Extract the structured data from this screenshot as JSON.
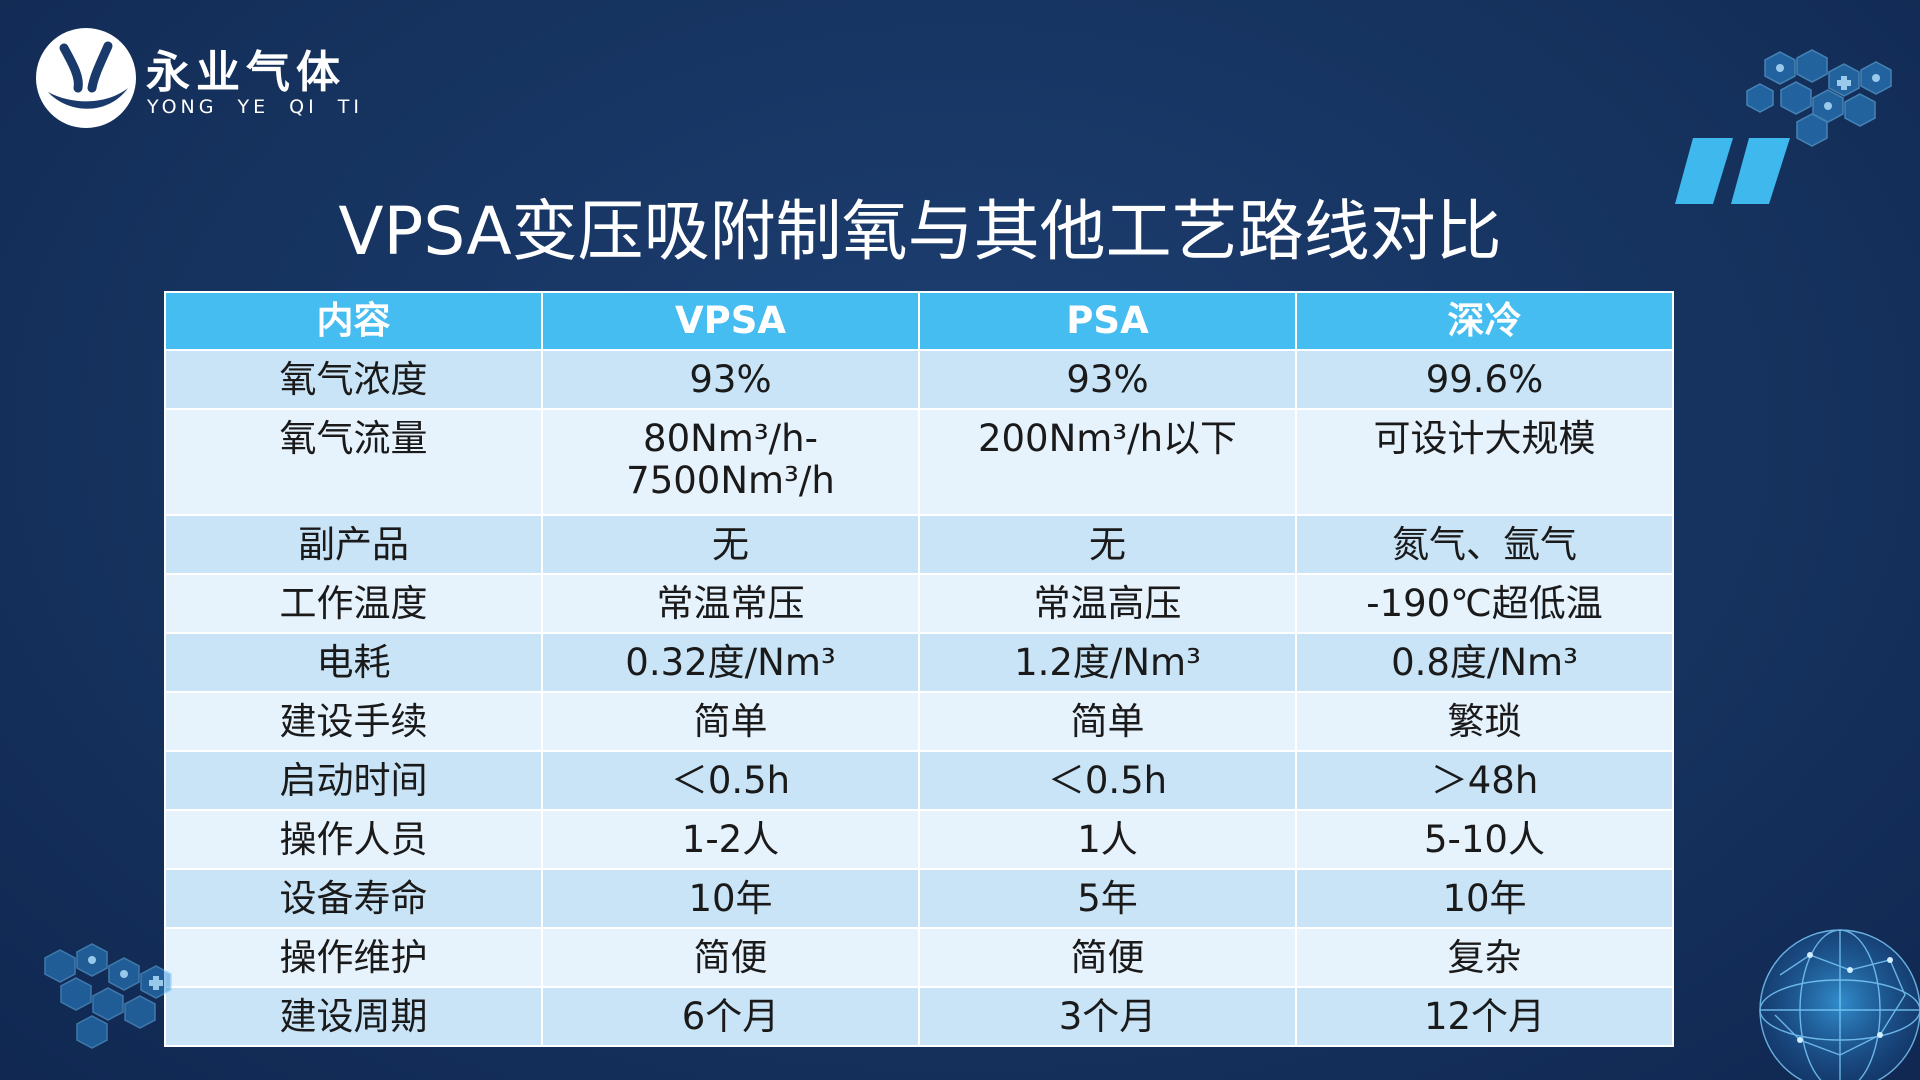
{
  "logo": {
    "name_cn": "永业气体",
    "name_en": "YONG YE QI TI"
  },
  "title": "VPSA变压吸附制氧与其他工艺路线对比",
  "colors": {
    "background": "#16335f",
    "header": "#46bdf0",
    "row_odd": "#c9e4f7",
    "row_even": "#e6f2fc",
    "accent": "#3fb8ee"
  },
  "table": {
    "headers": [
      "内容",
      "VPSA",
      "PSA",
      "深冷"
    ],
    "rows": [
      [
        "氧气浓度",
        "93%",
        "93%",
        "99.6%"
      ],
      [
        "氧气流量",
        "80Nm³/h-7500Nm³/h",
        "200Nm³/h以下",
        "可设计大规模"
      ],
      [
        "副产品",
        "无",
        "无",
        "氮气、氩气"
      ],
      [
        "工作温度",
        "常温常压",
        "常温高压",
        "-190℃超低温"
      ],
      [
        "电耗",
        "0.32度/Nm³",
        "1.2度/Nm³",
        "0.8度/Nm³"
      ],
      [
        "建设手续",
        "简单",
        "简单",
        "繁琐"
      ],
      [
        "启动时间",
        "＜0.5h",
        "＜0.5h",
        "＞48h"
      ],
      [
        "操作人员",
        "1-2人",
        "1人",
        "5-10人"
      ],
      [
        "设备寿命",
        "10年",
        "5年",
        "10年"
      ],
      [
        "操作维护",
        "简便",
        "简便",
        "复杂"
      ],
      [
        "建设周期",
        "6个月",
        "3个月",
        "12个月"
      ]
    ]
  },
  "icons": [
    "logo-mark-icon",
    "hexagon-cluster-icon",
    "quote-mark-icon",
    "globe-icon"
  ]
}
